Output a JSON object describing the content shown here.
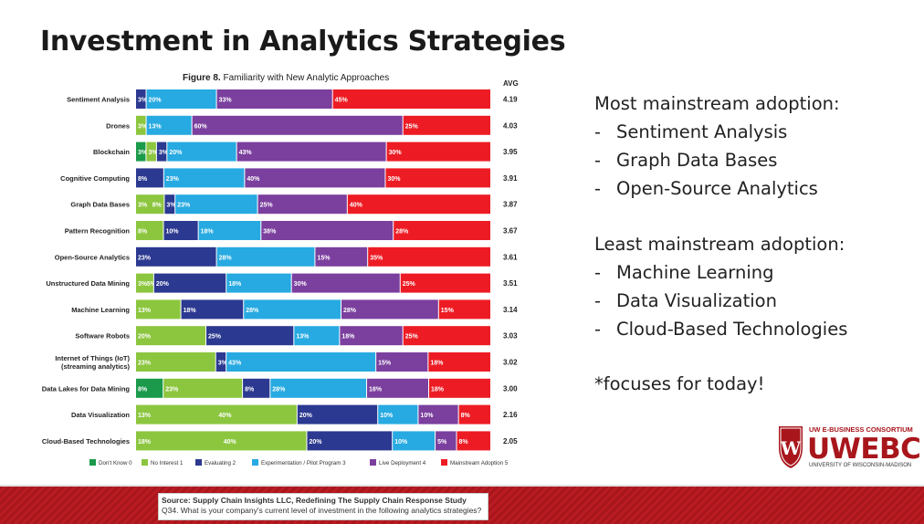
{
  "slide": {
    "title": "Investment in Analytics Strategies",
    "mainstream_heading": "Most mainstream adoption:",
    "mainstream_items": [
      "Sentiment Analysis",
      "Graph Data Bases",
      "Open-Source Analytics"
    ],
    "least_heading": "Least mainstream adoption:",
    "least_items": [
      "Machine Learning",
      "Data Visualization",
      "Cloud-Based Technologies"
    ],
    "focus_note": "*focuses for today!",
    "source_line1": "Source: Supply Chain Insights LLC, Redefining The Supply Chain Response Study",
    "source_line2": "Q34. What is your company's current level of investment in the following analytics strategies?",
    "logo_top": "UW E-BUSINESS CONSORTIUM",
    "logo_main": "UWEBC",
    "logo_bottom": "UNIVERSITY OF WISCONSIN-MADISON"
  },
  "chart_data": {
    "type": "bar",
    "orientation": "horizontal",
    "stacked": true,
    "title_prefix": "Figure 8.",
    "title": "Familiarity with New Analytic Approaches",
    "avg_label": "AVG",
    "categories": [
      "Sentiment Analysis",
      "Drones",
      "Blockchain",
      "Cognitive Computing",
      "Graph Data Bases",
      "Pattern Recognition",
      "Open-Source Analytics",
      "Unstructured Data Mining",
      "Machine Learning",
      "Software Robots",
      "Internet of Things (IoT)|(streaming analytics)",
      "Data Lakes for Data Mining",
      "Data Visualization",
      "Cloud-Based Technologies"
    ],
    "avg": [
      "4.19",
      "4.03",
      "3.95",
      "3.91",
      "3.87",
      "3.67",
      "3.61",
      "3.51",
      "3.14",
      "3.03",
      "3.02",
      "3.00",
      "2.16",
      "2.05"
    ],
    "series": [
      {
        "name": "Don't Know 0",
        "color": "#1a9a4a",
        "values": [
          0,
          0,
          3,
          0,
          0,
          0,
          0,
          0,
          0,
          0,
          0,
          8,
          0,
          0
        ]
      },
      {
        "name": "No Interest 1",
        "color": "#8cc63f",
        "values": [
          0,
          3,
          3,
          0,
          8,
          8,
          0,
          5,
          13,
          20,
          23,
          23,
          40,
          40
        ]
      },
      {
        "name": "Evaluating 2",
        "color": "#2b3990",
        "values": [
          3,
          0,
          3,
          8,
          3,
          10,
          23,
          20,
          18,
          25,
          3,
          8,
          20,
          20
        ]
      },
      {
        "name": "Experimentation / Pilot Program 3",
        "color": "#27aae1",
        "values": [
          20,
          13,
          20,
          23,
          23,
          18,
          28,
          18,
          28,
          13,
          43,
          28,
          10,
          10
        ]
      },
      {
        "name": "Live Deployment 4",
        "color": "#7b3f9e",
        "values": [
          33,
          60,
          43,
          40,
          25,
          38,
          15,
          30,
          28,
          18,
          15,
          18,
          10,
          5
        ]
      },
      {
        "name": "Mainstream Adoption 5",
        "color": "#ed1c24",
        "values": [
          45,
          25,
          30,
          30,
          40,
          28,
          35,
          25,
          15,
          25,
          18,
          18,
          8,
          8
        ]
      }
    ],
    "labels": [
      [
        "",
        "",
        "3%",
        "20%",
        "33%",
        "45%"
      ],
      [
        "",
        "3%",
        "",
        "13%",
        "60%",
        "25%"
      ],
      [
        "3%",
        "3%",
        "3%",
        "20%",
        "43%",
        "30%"
      ],
      [
        "",
        "",
        "8%",
        "23%",
        "40%",
        "30%"
      ],
      [
        "",
        "3%|8%",
        "3%",
        "23%",
        "25%",
        "40%"
      ],
      [
        "",
        "8%",
        "10%",
        "18%",
        "38%",
        "28%"
      ],
      [
        "",
        "",
        "23%",
        "28%",
        "15%",
        "35%"
      ],
      [
        "",
        "3%|5%",
        "20%",
        "18%",
        "30%",
        "25%"
      ],
      [
        "",
        "13%",
        "18%",
        "28%",
        "28%",
        "15%"
      ],
      [
        "",
        "20%",
        "25%",
        "13%",
        "18%",
        "25%"
      ],
      [
        "",
        "23%",
        "3%",
        "43%",
        "15%",
        "18%"
      ],
      [
        "8%",
        "23%",
        "8%",
        "28%",
        "18%",
        "18%"
      ],
      [
        "",
        "13%|40%",
        "20%",
        "10%",
        "10%",
        "8%"
      ],
      [
        "",
        "18%|40%",
        "20%",
        "10%",
        "5%",
        "8%"
      ]
    ],
    "xlim": [
      0,
      100
    ],
    "legend_position": "bottom"
  }
}
